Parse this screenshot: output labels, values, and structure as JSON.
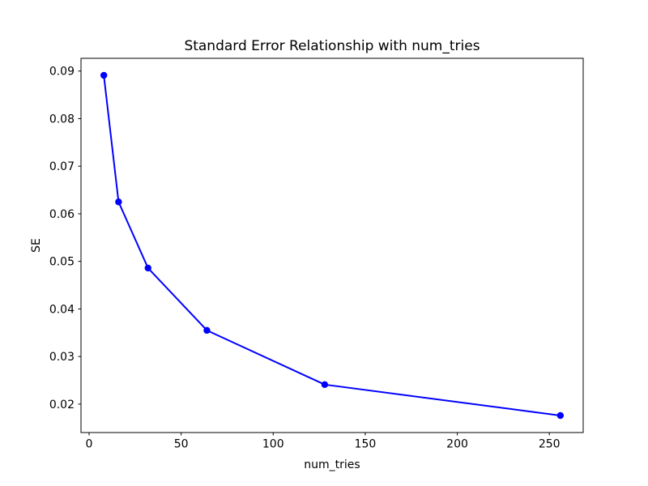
{
  "figure": {
    "background_color": "#ffffff",
    "text_color": "#000000"
  },
  "chart_data": {
    "type": "line",
    "title": "Standard Error Relationship with num_tries",
    "xlabel": "num_tries",
    "ylabel": "SE",
    "x": [
      8,
      16,
      32,
      64,
      128,
      256
    ],
    "y": [
      0.0891,
      0.0625,
      0.0486,
      0.0355,
      0.0241,
      0.0176
    ],
    "series": [
      {
        "name": "SE",
        "x": [
          8,
          16,
          32,
          64,
          128,
          256
        ],
        "values": [
          0.0891,
          0.0625,
          0.0486,
          0.0355,
          0.0241,
          0.0176
        ]
      }
    ],
    "line_color": "#0000ff",
    "marker": "o",
    "marker_color": "#0000ff",
    "xlim": [
      -4.4,
      268.4
    ],
    "ylim": [
      0.014025,
      0.092675
    ],
    "xticks": [
      0,
      50,
      100,
      150,
      200,
      250
    ],
    "xtick_labels": [
      "0",
      "50",
      "100",
      "150",
      "200",
      "250"
    ],
    "yticks": [
      0.02,
      0.03,
      0.04,
      0.05,
      0.06,
      0.07,
      0.08,
      0.09
    ],
    "ytick_labels": [
      "0.02",
      "0.03",
      "0.04",
      "0.05",
      "0.06",
      "0.07",
      "0.08",
      "0.09"
    ],
    "grid": false,
    "legend": null
  }
}
